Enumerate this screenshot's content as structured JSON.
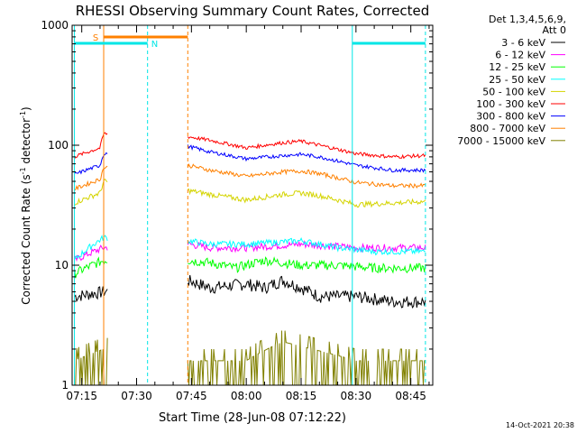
{
  "chart_data": {
    "type": "line",
    "title": "RHESSI Observing Summary Count Rates, Corrected",
    "xlabel": "Start Time (28-Jun-08 07:12:22)",
    "ylabel_main": "Corrected Count Rate (s",
    "ylabel_sup1": "-1",
    "ylabel_mid": " detector",
    "ylabel_sup2": "-1",
    "ylabel_end": ")",
    "y_scale": "log",
    "ylim": [
      1,
      1000
    ],
    "xlim": [
      "07:12:22",
      "08:51:00"
    ],
    "x_ticks": [
      "07:15",
      "07:30",
      "07:45",
      "08:00",
      "08:15",
      "08:30",
      "08:45"
    ],
    "y_ticks": [
      "1",
      "10",
      "100",
      "1000"
    ],
    "grid": false,
    "legend_header": [
      "Det 1,3,4,5,6,9,",
      "Att 0"
    ],
    "legend_position": "right",
    "footer_timestamp": "14-Oct-2021 20:38",
    "flag_labels": {
      "saa": "S",
      "night": "N"
    },
    "data_gap": [
      "07:22",
      "07:44"
    ],
    "series": [
      {
        "name": "3 - 6 keV",
        "color": "#000000",
        "values": [
          {
            "t": "07:13",
            "v": 5.5
          },
          {
            "t": "07:21",
            "v": 6
          },
          {
            "t": "07:44",
            "v": 7.5
          },
          {
            "t": "07:50",
            "v": 6.5
          },
          {
            "t": "08:00",
            "v": 7
          },
          {
            "t": "08:05",
            "v": 6.5
          },
          {
            "t": "08:10",
            "v": 7.5
          },
          {
            "t": "08:15",
            "v": 6.5
          },
          {
            "t": "08:20",
            "v": 5.5
          },
          {
            "t": "08:30",
            "v": 5.5
          },
          {
            "t": "08:40",
            "v": 5
          },
          {
            "t": "08:49",
            "v": 5
          }
        ]
      },
      {
        "name": "6 - 12 keV",
        "color": "#ff00ff",
        "values": [
          {
            "t": "07:13",
            "v": 11
          },
          {
            "t": "07:21",
            "v": 14
          },
          {
            "t": "07:44",
            "v": 15
          },
          {
            "t": "07:50",
            "v": 14
          },
          {
            "t": "08:00",
            "v": 14
          },
          {
            "t": "08:15",
            "v": 15
          },
          {
            "t": "08:30",
            "v": 14
          },
          {
            "t": "08:40",
            "v": 14
          },
          {
            "t": "08:49",
            "v": 14
          }
        ]
      },
      {
        "name": "12 - 25 keV",
        "color": "#00ff00",
        "values": [
          {
            "t": "07:13",
            "v": 8.5
          },
          {
            "t": "07:21",
            "v": 11
          },
          {
            "t": "07:44",
            "v": 11
          },
          {
            "t": "07:50",
            "v": 10.5
          },
          {
            "t": "07:57",
            "v": 9.5
          },
          {
            "t": "08:05",
            "v": 11
          },
          {
            "t": "08:15",
            "v": 10
          },
          {
            "t": "08:25",
            "v": 10
          },
          {
            "t": "08:35",
            "v": 9.5
          },
          {
            "t": "08:49",
            "v": 9.5
          }
        ]
      },
      {
        "name": "25 - 50 keV",
        "color": "#00ffff",
        "values": [
          {
            "t": "07:13",
            "v": 11
          },
          {
            "t": "07:21",
            "v": 17
          },
          {
            "t": "07:44",
            "v": 16
          },
          {
            "t": "07:50",
            "v": 15
          },
          {
            "t": "08:00",
            "v": 15
          },
          {
            "t": "08:15",
            "v": 16
          },
          {
            "t": "08:25",
            "v": 14
          },
          {
            "t": "08:35",
            "v": 13
          },
          {
            "t": "08:49",
            "v": 13
          }
        ]
      },
      {
        "name": "50 - 100 keV",
        "color": "#d4d400",
        "values": [
          {
            "t": "07:13",
            "v": 33
          },
          {
            "t": "07:20",
            "v": 40
          },
          {
            "t": "07:21",
            "v": 50
          },
          {
            "t": "07:44",
            "v": 42
          },
          {
            "t": "07:50",
            "v": 39
          },
          {
            "t": "08:00",
            "v": 35
          },
          {
            "t": "08:10",
            "v": 39
          },
          {
            "t": "08:15",
            "v": 40
          },
          {
            "t": "08:20",
            "v": 38
          },
          {
            "t": "08:30",
            "v": 32
          },
          {
            "t": "08:40",
            "v": 33
          },
          {
            "t": "08:49",
            "v": 34
          }
        ]
      },
      {
        "name": "100 - 300 keV",
        "color": "#ff0000",
        "values": [
          {
            "t": "07:13",
            "v": 80
          },
          {
            "t": "07:20",
            "v": 95
          },
          {
            "t": "07:21",
            "v": 125
          },
          {
            "t": "07:44",
            "v": 118
          },
          {
            "t": "07:50",
            "v": 110
          },
          {
            "t": "08:00",
            "v": 95
          },
          {
            "t": "08:10",
            "v": 105
          },
          {
            "t": "08:15",
            "v": 108
          },
          {
            "t": "08:20",
            "v": 100
          },
          {
            "t": "08:30",
            "v": 85
          },
          {
            "t": "08:40",
            "v": 80
          },
          {
            "t": "08:49",
            "v": 82
          }
        ]
      },
      {
        "name": "300 - 800 keV",
        "color": "#0000ff",
        "values": [
          {
            "t": "07:13",
            "v": 57
          },
          {
            "t": "07:20",
            "v": 68
          },
          {
            "t": "07:21",
            "v": 85
          },
          {
            "t": "07:44",
            "v": 98
          },
          {
            "t": "07:50",
            "v": 88
          },
          {
            "t": "08:00",
            "v": 77
          },
          {
            "t": "08:10",
            "v": 82
          },
          {
            "t": "08:15",
            "v": 84
          },
          {
            "t": "08:20",
            "v": 80
          },
          {
            "t": "08:30",
            "v": 68
          },
          {
            "t": "08:40",
            "v": 62
          },
          {
            "t": "08:49",
            "v": 62
          }
        ]
      },
      {
        "name": "800 - 7000 keV",
        "color": "#ff8000",
        "values": [
          {
            "t": "07:13",
            "v": 43
          },
          {
            "t": "07:20",
            "v": 52
          },
          {
            "t": "07:21",
            "v": 65
          },
          {
            "t": "07:44",
            "v": 68
          },
          {
            "t": "07:50",
            "v": 62
          },
          {
            "t": "08:00",
            "v": 55
          },
          {
            "t": "08:10",
            "v": 60
          },
          {
            "t": "08:15",
            "v": 61
          },
          {
            "t": "08:20",
            "v": 58
          },
          {
            "t": "08:30",
            "v": 49
          },
          {
            "t": "08:40",
            "v": 46
          },
          {
            "t": "08:49",
            "v": 46
          }
        ]
      },
      {
        "name": "7000 - 15000 keV",
        "color": "#808000",
        "values": [
          {
            "t": "07:13",
            "v": 1.6
          },
          {
            "t": "07:21",
            "v": 2
          },
          {
            "t": "07:44",
            "v": 1.6
          },
          {
            "t": "08:00",
            "v": 1.6
          },
          {
            "t": "08:10",
            "v": 2.3
          },
          {
            "t": "08:18",
            "v": 2
          },
          {
            "t": "08:30",
            "v": 1.6
          },
          {
            "t": "08:49",
            "v": 1.6
          }
        ]
      }
    ]
  }
}
